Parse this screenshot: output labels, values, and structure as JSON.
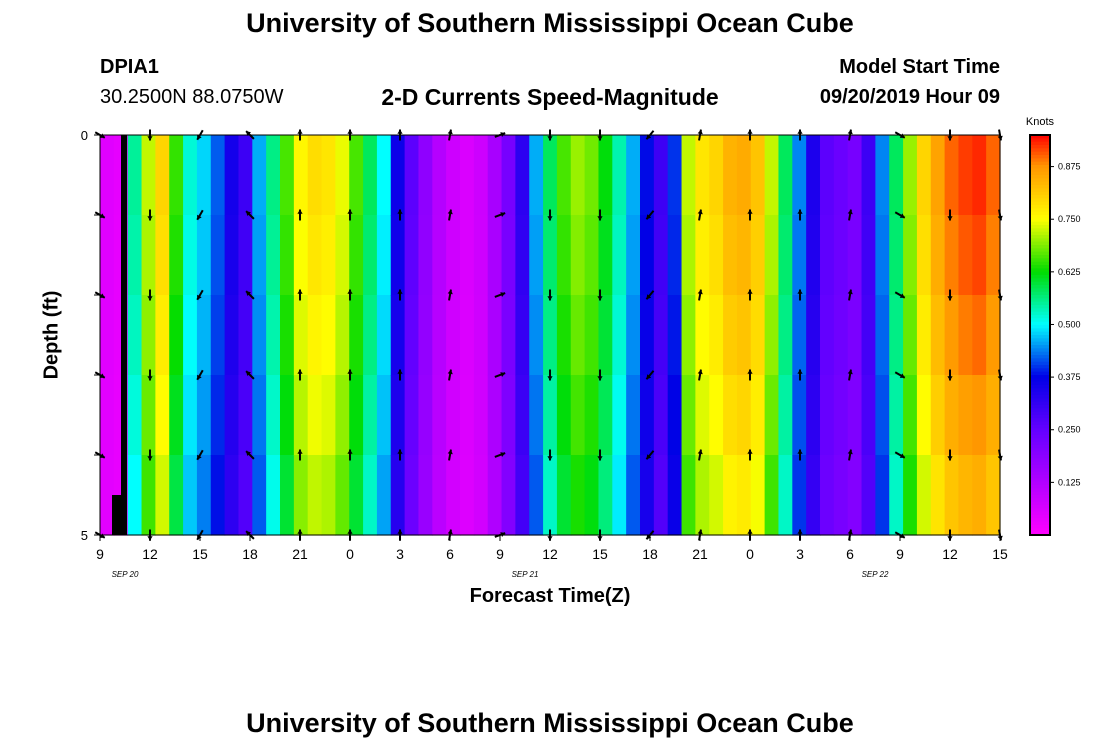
{
  "header": {
    "title": "University of Southern Mississippi Ocean Cube",
    "station_id": "DPIA1",
    "station_coords": "30.2500N 88.0750W",
    "subtitle": "2-D Currents Speed-Magnitude",
    "model_start_label": "Model Start Time",
    "model_start_value": "09/20/2019 Hour 09"
  },
  "footer": {
    "title": "University of Southern Mississippi Ocean Cube"
  },
  "chart_data": {
    "type": "heatmap",
    "title": "2-D Currents Speed-Magnitude",
    "xlabel": "Forecast Time(Z)",
    "ylabel": "Depth (ft)",
    "ylim": [
      0,
      5
    ],
    "y_ticks": [
      "0",
      "5"
    ],
    "x_hours_range": [
      0,
      54
    ],
    "x_tick_labels": [
      "9",
      "12",
      "15",
      "18",
      "21",
      "0",
      "3",
      "6",
      "9",
      "12",
      "15",
      "18",
      "21",
      "0",
      "3",
      "6",
      "9",
      "12",
      "15"
    ],
    "date_labels": [
      "SEP 20",
      "SEP 21",
      "SEP 22"
    ],
    "colorbar": {
      "unit": "Knots",
      "range": [
        0,
        0.95
      ],
      "tick_values": [
        0.125,
        0.25,
        0.375,
        0.5,
        0.625,
        0.75,
        0.875
      ],
      "tick_labels": [
        "0.125",
        "0.250",
        "0.375",
        "0.500",
        "0.625",
        "0.750",
        "0.875"
      ]
    },
    "speed_by_hour": [
      0.05,
      0.04,
      0.55,
      0.72,
      0.8,
      0.65,
      0.52,
      0.48,
      0.42,
      0.35,
      0.3,
      0.46,
      0.56,
      0.66,
      0.76,
      0.79,
      0.78,
      0.74,
      0.66,
      0.58,
      0.5,
      0.36,
      0.26,
      0.18,
      0.12,
      0.08,
      0.06,
      0.08,
      0.14,
      0.22,
      0.32,
      0.46,
      0.58,
      0.66,
      0.7,
      0.68,
      0.62,
      0.54,
      0.46,
      0.38,
      0.3,
      0.4,
      0.72,
      0.78,
      0.8,
      0.84,
      0.85,
      0.82,
      0.72,
      0.58,
      0.44,
      0.34,
      0.26,
      0.24,
      0.22,
      0.3,
      0.44,
      0.58,
      0.7,
      0.8,
      0.86,
      0.9,
      0.92,
      0.93,
      0.9
    ],
    "arrows": {
      "x_hours": [
        0,
        3,
        6,
        9,
        12,
        15,
        18,
        21,
        24,
        27,
        30,
        33,
        36,
        39,
        42,
        45,
        48,
        51,
        54
      ],
      "depth_rows": [
        0,
        1,
        2,
        3,
        4,
        5
      ],
      "direction_deg": [
        120,
        180,
        210,
        315,
        0,
        0,
        0,
        10,
        70,
        180,
        180,
        220,
        10,
        0,
        0,
        10,
        120,
        180,
        170
      ]
    }
  }
}
